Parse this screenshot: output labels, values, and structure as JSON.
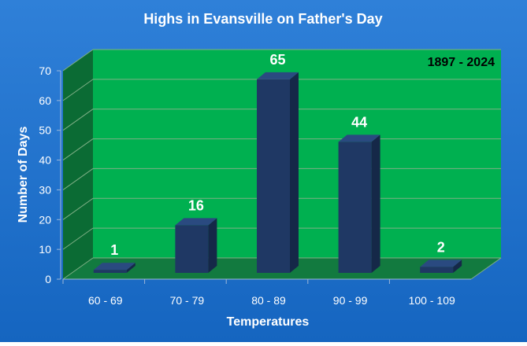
{
  "colors": {
    "background": "#1565C0",
    "background_top": "#2F80D8",
    "wall": "#00B050",
    "wall_dark": "#0B6B34",
    "floor": "#127A3F",
    "bar_front": "#1F3864",
    "bar_side": "#152848",
    "bar_top": "#2A4A80",
    "text_white": "#FFFFFF",
    "text_black": "#000000",
    "grid": "#7FAF86"
  },
  "chart_data": {
    "type": "bar",
    "title": "Highs in Evansville on Father's Day",
    "annotation": "1897 - 2024",
    "xlabel": "Temperatures",
    "ylabel": "Number of Days",
    "categories": [
      "60 - 69",
      "70 - 79",
      "80 - 89",
      "90 - 99",
      "100 - 109"
    ],
    "values": [
      1,
      16,
      65,
      44,
      2
    ],
    "data_labels": [
      "1",
      "16",
      "65",
      "44",
      "2"
    ],
    "ylim": [
      0,
      70
    ],
    "yticks": [
      0,
      10,
      20,
      30,
      40,
      50,
      60,
      70
    ],
    "ytick_labels": [
      "0",
      "10",
      "20",
      "30",
      "40",
      "50",
      "60",
      "70"
    ],
    "grid": true,
    "legend": "none",
    "style": "3d"
  }
}
